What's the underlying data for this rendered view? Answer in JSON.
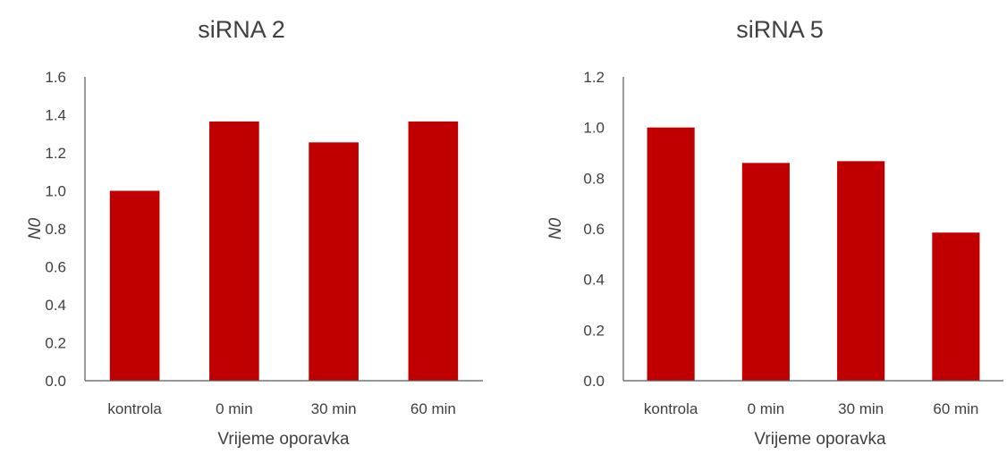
{
  "colors": {
    "bar": "#c00000",
    "axis": "#595959",
    "text": "#404040",
    "background": "#ffffff"
  },
  "chart_data": [
    {
      "type": "bar",
      "title": "siRNA 2",
      "xlabel": "Vrijeme oporavka",
      "ylabel": "N0",
      "categories": [
        "kontrola",
        "0 min",
        "30 min",
        "60 min"
      ],
      "values": [
        1.0,
        1.365,
        1.255,
        1.365
      ],
      "ylim": [
        0,
        1.6
      ],
      "yticks": [
        "0.0",
        "0.2",
        "0.4",
        "0.6",
        "0.8",
        "1.0",
        "1.2",
        "1.4",
        "1.6"
      ],
      "grid": false,
      "legend": "none"
    },
    {
      "type": "bar",
      "title": "siRNA 5",
      "xlabel": "Vrijeme oporavka",
      "ylabel": "N0",
      "categories": [
        "kontrola",
        "0 min",
        "30 min",
        "60 min"
      ],
      "values": [
        1.0,
        0.86,
        0.867,
        0.585
      ],
      "ylim": [
        0,
        1.2
      ],
      "yticks": [
        "0.0",
        "0.2",
        "0.4",
        "0.6",
        "0.8",
        "1.0",
        "1.2"
      ],
      "grid": false,
      "legend": "none"
    }
  ]
}
